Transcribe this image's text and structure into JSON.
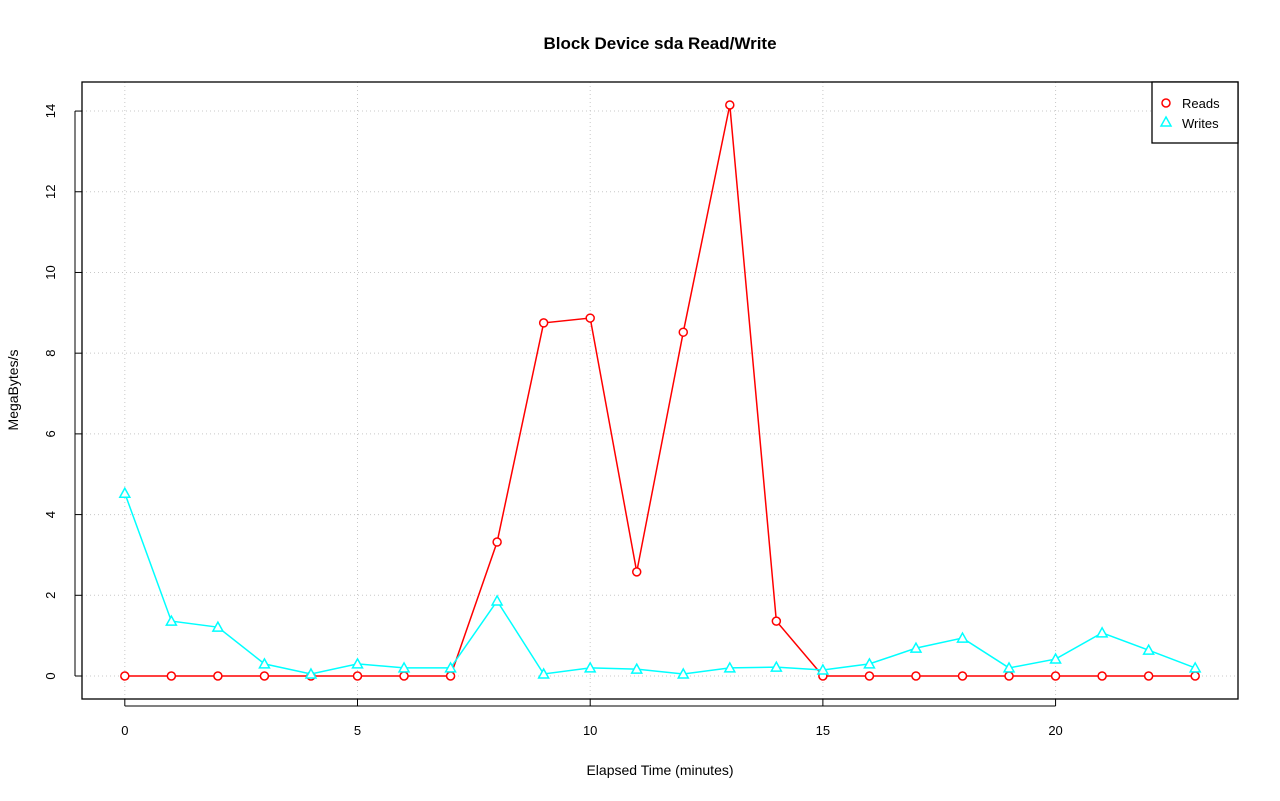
{
  "chart_data": {
    "type": "line",
    "title": "Block Device sda Read/Write",
    "xlabel": "Elapsed Time (minutes)",
    "ylabel": "MegaBytes/s",
    "xlim": [
      -0.92,
      23.92
    ],
    "ylim": [
      -0.57,
      14.72
    ],
    "xticks": [
      0,
      5,
      10,
      15,
      20
    ],
    "yticks": [
      0,
      2,
      4,
      6,
      8,
      10,
      12,
      14
    ],
    "grid": true,
    "legend_position": "top-right",
    "x": [
      0,
      1,
      2,
      3,
      4,
      5,
      6,
      7,
      8,
      9,
      10,
      11,
      12,
      13,
      14,
      15,
      16,
      17,
      18,
      19,
      20,
      21,
      22,
      23
    ],
    "series": [
      {
        "name": "Reads",
        "color": "#ff0000",
        "marker": "circle",
        "values": [
          0,
          0,
          0,
          0,
          0,
          0,
          0,
          0,
          3.32,
          8.75,
          8.87,
          2.58,
          8.52,
          14.15,
          1.36,
          0,
          0,
          0,
          0,
          0,
          0,
          0,
          0,
          0
        ]
      },
      {
        "name": "Writes",
        "color": "#00ffff",
        "marker": "triangle",
        "values": [
          4.53,
          1.36,
          1.21,
          0.3,
          0.05,
          0.3,
          0.2,
          0.2,
          1.86,
          0.05,
          0.2,
          0.17,
          0.05,
          0.2,
          0.22,
          0.15,
          0.3,
          0.69,
          0.94,
          0.2,
          0.42,
          1.07,
          0.64,
          0.2
        ]
      }
    ]
  }
}
